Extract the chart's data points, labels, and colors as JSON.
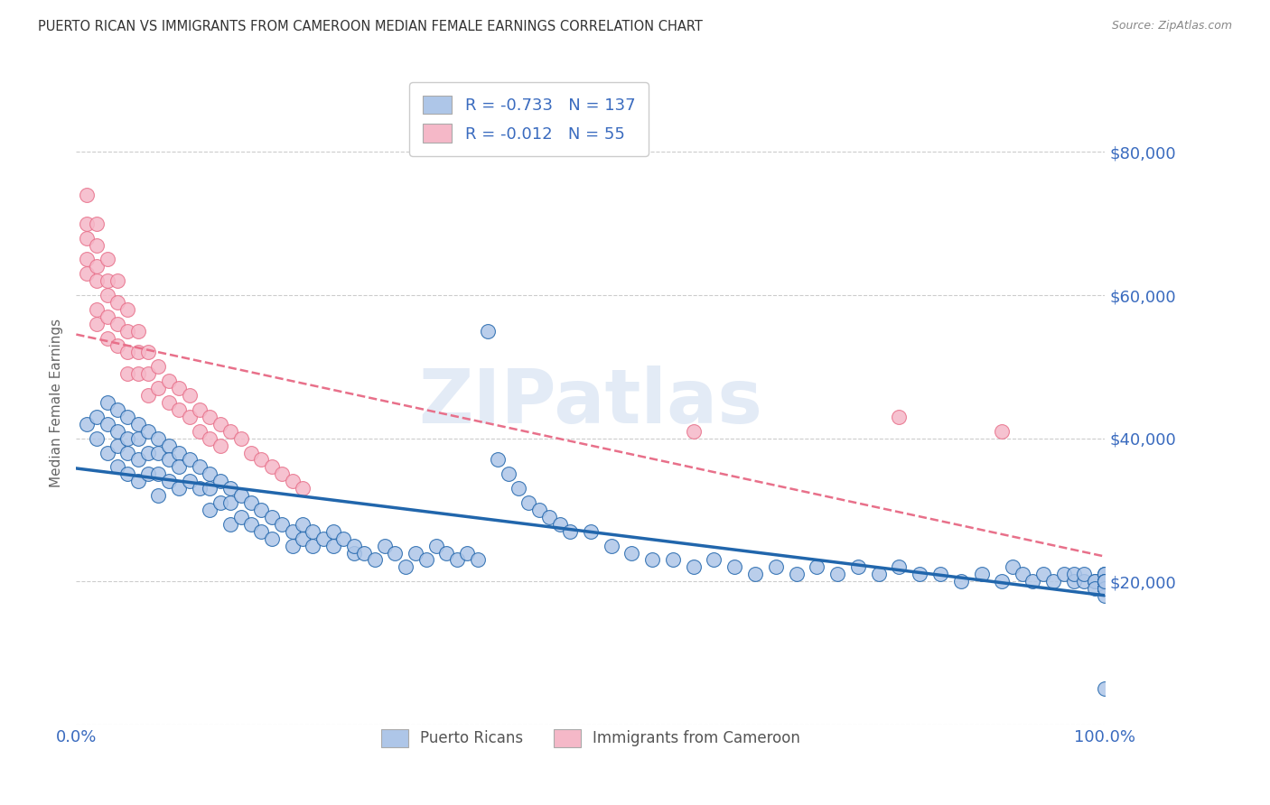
{
  "title": "PUERTO RICAN VS IMMIGRANTS FROM CAMEROON MEDIAN FEMALE EARNINGS CORRELATION CHART",
  "source": "Source: ZipAtlas.com",
  "ylabel": "Median Female Earnings",
  "legend_label_1": "Puerto Ricans",
  "legend_label_2": "Immigrants from Cameroon",
  "R1": -0.733,
  "N1": 137,
  "R2": -0.012,
  "N2": 55,
  "ylim_min": 0,
  "ylim_max": 90000,
  "xlim_min": 0.0,
  "xlim_max": 1.0,
  "yticks": [
    0,
    20000,
    40000,
    60000,
    80000
  ],
  "ytick_labels": [
    "",
    "$20,000",
    "$40,000",
    "$60,000",
    "$80,000"
  ],
  "xticks": [
    0.0,
    0.2,
    0.4,
    0.6,
    0.8,
    1.0
  ],
  "xtick_labels": [
    "0.0%",
    "",
    "",
    "",
    "",
    "100.0%"
  ],
  "color_pr": "#aec6e8",
  "color_cam": "#f5b8c8",
  "color_pr_line": "#2166ac",
  "color_cam_line": "#e8708a",
  "color_axis_labels": "#3a6bbf",
  "color_grid": "#cccccc",
  "watermark": "ZIPatlas",
  "pr_x": [
    0.01,
    0.02,
    0.02,
    0.03,
    0.03,
    0.03,
    0.04,
    0.04,
    0.04,
    0.04,
    0.05,
    0.05,
    0.05,
    0.05,
    0.06,
    0.06,
    0.06,
    0.06,
    0.07,
    0.07,
    0.07,
    0.08,
    0.08,
    0.08,
    0.08,
    0.09,
    0.09,
    0.09,
    0.1,
    0.1,
    0.1,
    0.11,
    0.11,
    0.12,
    0.12,
    0.13,
    0.13,
    0.13,
    0.14,
    0.14,
    0.15,
    0.15,
    0.15,
    0.16,
    0.16,
    0.17,
    0.17,
    0.18,
    0.18,
    0.19,
    0.19,
    0.2,
    0.21,
    0.21,
    0.22,
    0.22,
    0.23,
    0.23,
    0.24,
    0.25,
    0.25,
    0.26,
    0.27,
    0.27,
    0.28,
    0.29,
    0.3,
    0.31,
    0.32,
    0.33,
    0.34,
    0.35,
    0.36,
    0.37,
    0.38,
    0.39,
    0.4,
    0.41,
    0.42,
    0.43,
    0.44,
    0.45,
    0.46,
    0.47,
    0.48,
    0.5,
    0.52,
    0.54,
    0.56,
    0.58,
    0.6,
    0.62,
    0.64,
    0.66,
    0.68,
    0.7,
    0.72,
    0.74,
    0.76,
    0.78,
    0.8,
    0.82,
    0.84,
    0.86,
    0.88,
    0.9,
    0.91,
    0.92,
    0.93,
    0.94,
    0.95,
    0.96,
    0.97,
    0.97,
    0.98,
    0.98,
    0.99,
    0.99,
    0.99,
    1.0,
    1.0,
    1.0,
    1.0,
    1.0,
    1.0,
    1.0,
    1.0,
    1.0,
    1.0,
    1.0,
    1.0,
    1.0,
    1.0,
    1.0,
    1.0,
    1.0,
    1.0
  ],
  "pr_y": [
    42000,
    43000,
    40000,
    45000,
    42000,
    38000,
    44000,
    41000,
    39000,
    36000,
    43000,
    40000,
    38000,
    35000,
    42000,
    40000,
    37000,
    34000,
    41000,
    38000,
    35000,
    40000,
    38000,
    35000,
    32000,
    39000,
    37000,
    34000,
    38000,
    36000,
    33000,
    37000,
    34000,
    36000,
    33000,
    35000,
    33000,
    30000,
    34000,
    31000,
    33000,
    31000,
    28000,
    32000,
    29000,
    31000,
    28000,
    30000,
    27000,
    29000,
    26000,
    28000,
    27000,
    25000,
    26000,
    28000,
    25000,
    27000,
    26000,
    25000,
    27000,
    26000,
    24000,
    25000,
    24000,
    23000,
    25000,
    24000,
    22000,
    24000,
    23000,
    25000,
    24000,
    23000,
    24000,
    23000,
    55000,
    37000,
    35000,
    33000,
    31000,
    30000,
    29000,
    28000,
    27000,
    27000,
    25000,
    24000,
    23000,
    23000,
    22000,
    23000,
    22000,
    21000,
    22000,
    21000,
    22000,
    21000,
    22000,
    21000,
    22000,
    21000,
    21000,
    20000,
    21000,
    20000,
    22000,
    21000,
    20000,
    21000,
    20000,
    21000,
    20000,
    21000,
    20000,
    21000,
    20000,
    20000,
    19000,
    21000,
    20000,
    19000,
    21000,
    20000,
    19000,
    20000,
    19000,
    20000,
    19000,
    21000,
    20000,
    19000,
    18000,
    20000,
    19000,
    5000,
    20000
  ],
  "cam_x": [
    0.01,
    0.01,
    0.01,
    0.01,
    0.01,
    0.02,
    0.02,
    0.02,
    0.02,
    0.02,
    0.02,
    0.03,
    0.03,
    0.03,
    0.03,
    0.03,
    0.04,
    0.04,
    0.04,
    0.04,
    0.05,
    0.05,
    0.05,
    0.05,
    0.06,
    0.06,
    0.06,
    0.07,
    0.07,
    0.07,
    0.08,
    0.08,
    0.09,
    0.09,
    0.1,
    0.1,
    0.11,
    0.11,
    0.12,
    0.12,
    0.13,
    0.13,
    0.14,
    0.14,
    0.15,
    0.16,
    0.17,
    0.18,
    0.19,
    0.2,
    0.21,
    0.22,
    0.6,
    0.8,
    0.9
  ],
  "cam_y": [
    74000,
    70000,
    68000,
    65000,
    63000,
    70000,
    67000,
    64000,
    62000,
    58000,
    56000,
    65000,
    62000,
    60000,
    57000,
    54000,
    62000,
    59000,
    56000,
    53000,
    58000,
    55000,
    52000,
    49000,
    55000,
    52000,
    49000,
    52000,
    49000,
    46000,
    50000,
    47000,
    48000,
    45000,
    47000,
    44000,
    46000,
    43000,
    44000,
    41000,
    43000,
    40000,
    42000,
    39000,
    41000,
    40000,
    38000,
    37000,
    36000,
    35000,
    34000,
    33000,
    41000,
    43000,
    41000
  ]
}
